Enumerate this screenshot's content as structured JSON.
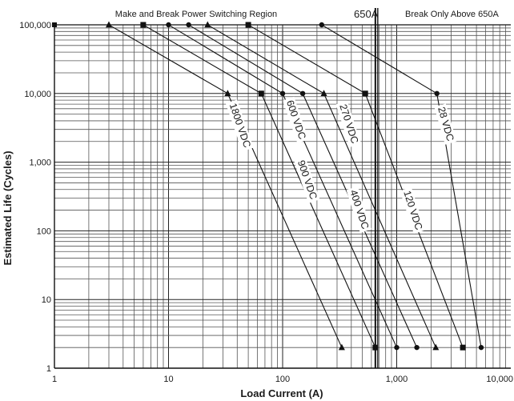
{
  "chart_data": {
    "type": "line",
    "x_scale": "log",
    "y_scale": "log",
    "xlim": [
      1,
      10000
    ],
    "ylim": [
      1,
      100000
    ],
    "grid": true,
    "xlabel": "Load Current (A)",
    "ylabel": "Estimated Life (Cycles)",
    "x_tick_labels": [
      "1",
      "10",
      "100",
      "1,000",
      "10,000"
    ],
    "y_tick_labels": [
      "1",
      "10",
      "100",
      "1,000",
      "10,000",
      "100,000"
    ],
    "annotations": {
      "region_left": "Make and Break Power Switching Region",
      "limit_current": "650A",
      "region_right": "Break Only Above 650A"
    },
    "limit_x": 650,
    "series": [
      {
        "name": "28 VDC",
        "marker": "circle",
        "x": [
          1,
          220,
          2250,
          5500
        ],
        "y": [
          100000,
          100000,
          10000,
          2
        ]
      },
      {
        "name": "120 VDC",
        "marker": "square",
        "x": [
          1,
          50,
          530,
          3800
        ],
        "y": [
          100000,
          100000,
          10000,
          2
        ]
      },
      {
        "name": "270 VDC",
        "marker": "triangle",
        "x": [
          1,
          22,
          230,
          2200
        ],
        "y": [
          100000,
          100000,
          10000,
          2
        ]
      },
      {
        "name": "400 VDC",
        "marker": "circle",
        "x": [
          1,
          15,
          150,
          1500
        ],
        "y": [
          100000,
          100000,
          10000,
          2
        ]
      },
      {
        "name": "600 VDC",
        "marker": "circle",
        "x": [
          1,
          10,
          100,
          1000
        ],
        "y": [
          100000,
          100000,
          10000,
          2
        ]
      },
      {
        "name": "900 VDC",
        "marker": "square",
        "x": [
          1,
          6,
          65,
          650
        ],
        "y": [
          100000,
          100000,
          10000,
          2
        ]
      },
      {
        "name": "1800 VDC",
        "marker": "triangle",
        "x": [
          1,
          3,
          33,
          330
        ],
        "y": [
          100000,
          100000,
          10000,
          2
        ]
      }
    ],
    "series_labels": [
      "1800 VDC",
      "600 VDC",
      "270 VDC",
      "28 VDC",
      "900 VDC",
      "400 VDC",
      "120 VDC"
    ]
  }
}
